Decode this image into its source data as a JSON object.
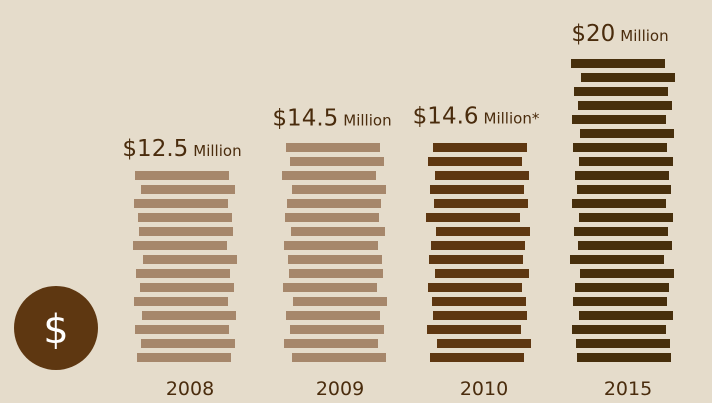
{
  "chart_data": {
    "type": "bar",
    "title": "",
    "xlabel": "",
    "ylabel": "",
    "categories": [
      "2008",
      "2009",
      "2010",
      "2015"
    ],
    "values": [
      12.5,
      14.5,
      14.6,
      20
    ],
    "unit": "Million",
    "labels": [
      {
        "amount": "$12.5",
        "unit": "Million"
      },
      {
        "amount": "$14.5",
        "unit": "Million"
      },
      {
        "amount": "$14.6",
        "unit": "Million*"
      },
      {
        "amount": "$20",
        "unit": "Million"
      }
    ],
    "grid": false,
    "legend": "none",
    "bar_colors": [
      "#a6876b",
      "#a6876b",
      "#5e3711",
      "#472f0c"
    ],
    "label_color": "#4a2c0d"
  },
  "badge": {
    "symbol": "$",
    "icon": "dollar-coin-icon",
    "color": "#5e3711",
    "text_color": "#ffffff"
  },
  "colors": {
    "background": "#e5dccb"
  }
}
